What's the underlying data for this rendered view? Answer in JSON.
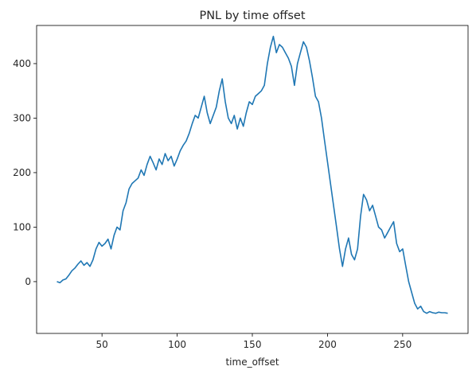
{
  "chart_data": {
    "type": "line",
    "title": "PNL by time offset",
    "xlabel": "time_offset",
    "ylabel": "",
    "xlim": [
      6.5,
      293.5
    ],
    "ylim": [
      -95,
      470
    ],
    "xticks": [
      50,
      100,
      150,
      200,
      250
    ],
    "yticks": [
      0,
      100,
      200,
      300,
      400
    ],
    "grid": false,
    "legend": "none",
    "line_color": "#1f77b4",
    "series": [
      {
        "x": [
          20,
          22,
          24,
          26,
          28,
          30,
          32,
          34,
          36,
          38,
          40,
          42,
          44,
          46,
          48,
          50,
          52,
          54,
          56,
          58,
          60,
          62,
          64,
          66,
          68,
          70,
          72,
          74,
          76,
          78,
          80,
          82,
          84,
          86,
          88,
          90,
          92,
          94,
          96,
          98,
          100,
          102,
          104,
          106,
          108,
          110,
          112,
          114,
          116,
          118,
          120,
          122,
          124,
          126,
          128,
          130,
          132,
          134,
          136,
          138,
          140,
          142,
          144,
          146,
          148,
          150,
          152,
          154,
          156,
          158,
          160,
          162,
          164,
          166,
          168,
          170,
          172,
          174,
          176,
          178,
          180,
          182,
          184,
          186,
          188,
          190,
          192,
          194,
          196,
          198,
          200,
          202,
          204,
          206,
          208,
          210,
          212,
          214,
          216,
          218,
          220,
          222,
          224,
          226,
          228,
          230,
          232,
          234,
          236,
          238,
          240,
          242,
          244,
          246,
          248,
          250,
          252,
          254,
          256,
          258,
          260,
          262,
          264,
          266,
          268,
          270,
          272,
          274,
          276,
          278,
          280
        ],
        "y": [
          0,
          -2,
          3,
          5,
          12,
          20,
          25,
          32,
          38,
          30,
          35,
          28,
          40,
          60,
          72,
          65,
          70,
          78,
          60,
          85,
          100,
          95,
          130,
          145,
          170,
          180,
          185,
          190,
          205,
          195,
          215,
          230,
          218,
          205,
          225,
          215,
          235,
          222,
          230,
          212,
          225,
          240,
          250,
          258,
          272,
          290,
          305,
          300,
          320,
          340,
          310,
          290,
          305,
          320,
          350,
          372,
          330,
          300,
          290,
          305,
          280,
          300,
          285,
          310,
          330,
          325,
          340,
          345,
          350,
          360,
          400,
          430,
          450,
          420,
          435,
          430,
          420,
          410,
          395,
          360,
          400,
          420,
          440,
          430,
          405,
          375,
          340,
          330,
          300,
          260,
          220,
          180,
          140,
          100,
          60,
          28,
          60,
          80,
          50,
          40,
          60,
          120,
          160,
          150,
          130,
          140,
          120,
          100,
          95,
          80,
          90,
          100,
          110,
          70,
          55,
          60,
          30,
          0,
          -20,
          -40,
          -50,
          -45,
          -55,
          -58,
          -55,
          -57,
          -58,
          -56,
          -57,
          -57,
          -58
        ]
      }
    ]
  }
}
